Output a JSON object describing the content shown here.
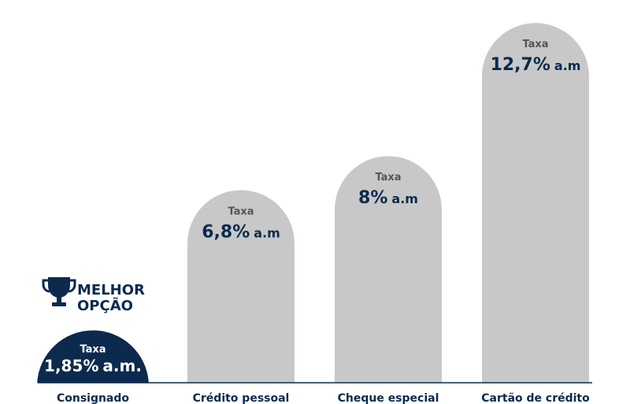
{
  "chart_data": {
    "type": "bar",
    "categories": [
      "Consignado",
      "Crédito pessoal",
      "Cheque especial",
      "Cartão de crédito"
    ],
    "values": [
      1.85,
      6.8,
      8,
      12.7
    ],
    "value_labels": [
      {
        "prefix": "Taxa",
        "main": "1,85%",
        "unit": "a.m."
      },
      {
        "prefix": "Taxa",
        "main": "6,8%",
        "unit": "a.m"
      },
      {
        "prefix": "Taxa",
        "main": "8%",
        "unit": "a.m"
      },
      {
        "prefix": "Taxa",
        "main": "12,7%",
        "unit": "a.m"
      }
    ],
    "highlight_index": 0,
    "ylim": [
      0,
      13.4
    ],
    "title": "",
    "xlabel": "",
    "ylabel": "",
    "grid": false,
    "colors": {
      "highlight": "#0b2a4e",
      "bar": "#c8c8c8",
      "value_text": "#0b2a4e",
      "taxa_text_on_gray": "#555555",
      "taxa_text_on_highlight": "#ffffff",
      "axis_line": "#0b2a4e"
    }
  },
  "badge": {
    "line1": "MELHOR",
    "line2": "OPÇÃO",
    "icon": "trophy-icon"
  }
}
